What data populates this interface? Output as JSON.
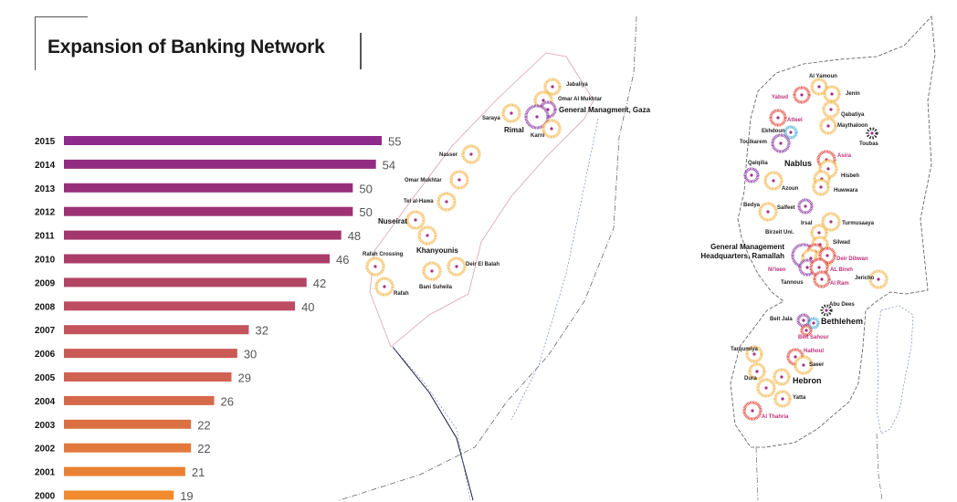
{
  "title": "Expansion of Banking Network",
  "colors": {
    "bar_gradient": [
      "#8e2a8b",
      "#a0346d",
      "#c05060",
      "#d66b49",
      "#f08a2c"
    ],
    "orange_ring": "#f2b54a",
    "red_ring": "#e0453a",
    "purple_ring": "#8a3aa0",
    "blue_ring": "#4ab0d8",
    "border": "#999999"
  },
  "chart_data": {
    "type": "bar",
    "orientation": "horizontal",
    "title": "Expansion of Banking Network",
    "categories": [
      "2015",
      "2014",
      "2013",
      "2012",
      "2011",
      "2010",
      "2009",
      "2008",
      "2007",
      "2006",
      "2005",
      "2004",
      "2003",
      "2002",
      "2001",
      "2000"
    ],
    "values": [
      55,
      54,
      50,
      50,
      48,
      46,
      42,
      40,
      32,
      30,
      29,
      26,
      22,
      22,
      21,
      19
    ],
    "value_labels": [
      "55",
      "54",
      "50",
      "50",
      "48",
      "46",
      "42",
      "40",
      "32",
      "30",
      "29",
      "26",
      "22",
      "22",
      "21",
      "19"
    ],
    "grid": false,
    "legend": "none"
  },
  "gaza_map": {
    "labels": {
      "jabaliya": "Jabaliya",
      "omar_al_mukhtar": "Omar Al Mukhtar",
      "general_gaza": "General Managment, Gaza",
      "saraya": "Saraya",
      "rimal": "Rimal",
      "karni": "Karni",
      "nasser": "Nasser",
      "omar_mukhtar": "Omar Mukhtar",
      "tel_al_hawa": "Tel al-Hawa",
      "nuseirat": "Nuseirat",
      "khanyounis": "Khanyounis",
      "rafah_crossing": "Rafah Crossing",
      "rafah": "Rafah",
      "bani_suheila": "Bani Suheila",
      "deir_el_balah": "Deir El Balah"
    }
  },
  "westbank_map": {
    "labels": {
      "al_yamoun": "Al Yamoun",
      "yabud": "Yabud",
      "jenin": "Jenin",
      "qabatiya": "Qabatiya",
      "atteel": "Atteel",
      "ekhdoun": "Ekhdoun",
      "maythaloon": "Maythaloon",
      "toubas": "Toubas",
      "toulkarem": "Toulkarem",
      "asira": "Asira",
      "nablus": "Nablus",
      "qalqilia": "Qalqilia",
      "hisbeh": "Hisbeh",
      "azoun": "Azoun",
      "huwwara": "Huwwara",
      "bedya": "Bedya",
      "salfeet": "Salfeet",
      "irsal": "Irsal",
      "birzeit_uni": "Birzeit Uni.",
      "turmusaaya": "Turmusaaya",
      "silwad": "Silwad",
      "general_ramallah_1": "General Management",
      "general_ramallah_2": "Headquarters, Ramallah",
      "deir_dibwan": "Deir Dibwan",
      "nileen": "Ni'leen",
      "al_bireh": "AL Bireh",
      "jericho": "Jericho",
      "tannous": "Tannous",
      "al_ram": "Al Ram",
      "abu_dees": "Abu Dees",
      "beit_jala": "Beit Jala",
      "bethlehem": "Bethlehem",
      "beit_sahour": "Beit Sahour",
      "tarqumiya": "Tarqumiya",
      "halhoul": "Halhoul",
      "saeer": "Saeer",
      "dura": "Dura",
      "hebron": "Hebron",
      "yatta": "Yatta",
      "al_thahria": "Al Thahria"
    }
  }
}
